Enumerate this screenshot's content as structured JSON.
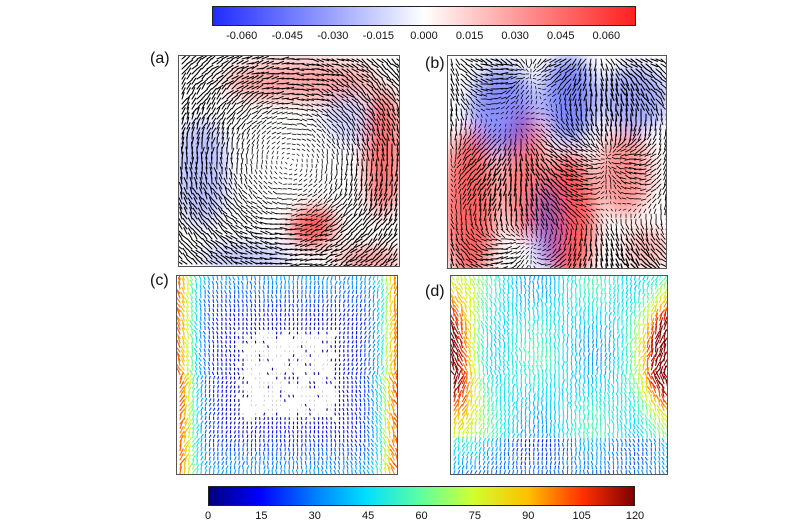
{
  "colorbar_top": {
    "ticks": [
      "-0.060",
      "-0.045",
      "-0.030",
      "-0.015",
      "0.000",
      "0.015",
      "0.030",
      "0.045",
      "0.060"
    ],
    "range": [
      -0.07,
      0.07
    ],
    "colormap": [
      "#1f2bff",
      "#ffffff",
      "#ff2020"
    ]
  },
  "colorbar_bottom": {
    "ticks": [
      "0",
      "15",
      "30",
      "45",
      "60",
      "75",
      "90",
      "105",
      "120"
    ],
    "range": [
      0,
      120
    ],
    "colormap": [
      "#00007f",
      "#0000ff",
      "#00b0ff",
      "#4dffb0",
      "#c8ff3c",
      "#ffb000",
      "#ff3000",
      "#7f0000"
    ]
  },
  "panels": [
    {
      "id": "a",
      "label": "(a)",
      "type": "vorticity-vectors",
      "pattern": "single-vortex"
    },
    {
      "id": "b",
      "label": "(b)",
      "type": "vorticity-vectors",
      "pattern": "multi-vortex"
    },
    {
      "id": "c",
      "label": "(c)",
      "type": "speed-vectors",
      "pattern": "slow-core"
    },
    {
      "id": "d",
      "label": "(d)",
      "type": "speed-vectors",
      "pattern": "fast-sides"
    }
  ]
}
